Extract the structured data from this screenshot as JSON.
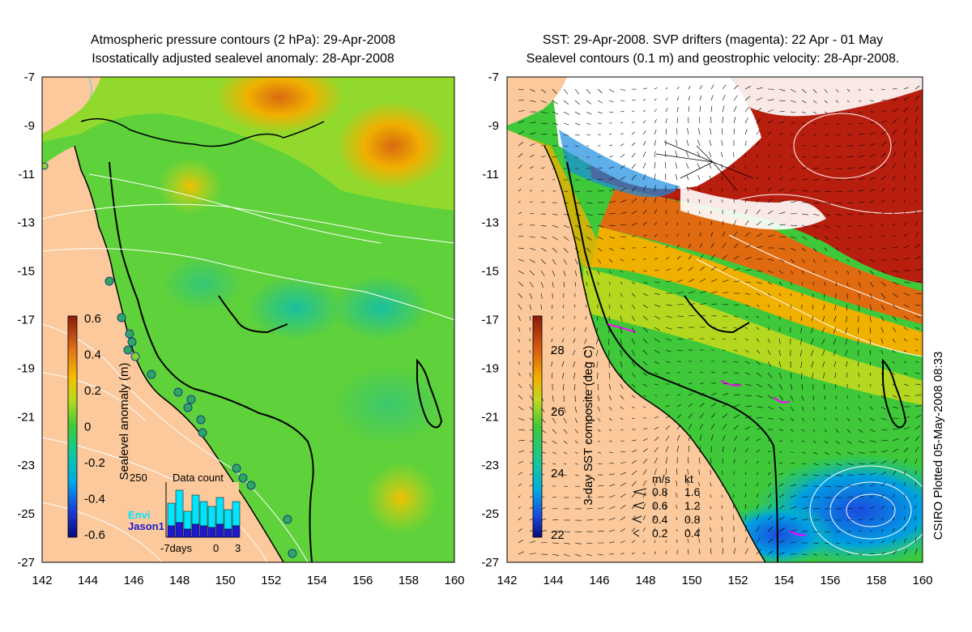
{
  "left_panel": {
    "title_line1": "Atmospheric pressure contours (2 hPa): 29-Apr-2008",
    "title_line2": "Isostatically adjusted sealevel anomaly: 28-Apr-2008",
    "colorbar_label": "Sealevel anomaly (m)",
    "colorbar_ticks": [
      "0.6",
      "0.4",
      "0.2",
      "0",
      "-0.2",
      "-0.4",
      "-0.6"
    ],
    "inset": {
      "title": "Data count",
      "ymax_label": "250",
      "legend_envi": "Envi",
      "legend_jason": "Jason1",
      "x_labels": [
        "-7days",
        "0",
        "3"
      ],
      "envi_color": "#00e5ff",
      "jason_color": "#1a1ad0"
    }
  },
  "right_panel": {
    "title_line1": "SST: 29-Apr-2008. SVP drifters (magenta): 22 Apr - 01 May",
    "title_line2": "Sealevel contours (0.1 m) and geostrophic velocity: 28-Apr-2008.",
    "colorbar_label": "3-day SST composite (deg C)",
    "colorbar_ticks": [
      "28",
      "26",
      "24",
      "22"
    ],
    "velocity_legend": {
      "header_ms": "m/s",
      "header_kt": "kt",
      "rows": [
        {
          "ms": "0.8",
          "kt": "1.6"
        },
        {
          "ms": "0.6",
          "kt": "1.2"
        },
        {
          "ms": "0.4",
          "kt": "0.8"
        },
        {
          "ms": "0.2",
          "kt": "0.4"
        }
      ]
    }
  },
  "axes": {
    "lat_labels": [
      "-7",
      "-9",
      "-11",
      "-13",
      "-15",
      "-17",
      "-19",
      "-21",
      "-23",
      "-25",
      "-27"
    ],
    "lon_labels": [
      "142",
      "144",
      "146",
      "148",
      "150",
      "152",
      "154",
      "156",
      "158",
      "160"
    ]
  },
  "credit": "CSIRO Plotted 05-May-2008 08:33",
  "colors": {
    "land": "#fbc99b",
    "sla_base": "#5fd13a",
    "coast": "#000000",
    "drifters": "#ff00ff"
  }
}
